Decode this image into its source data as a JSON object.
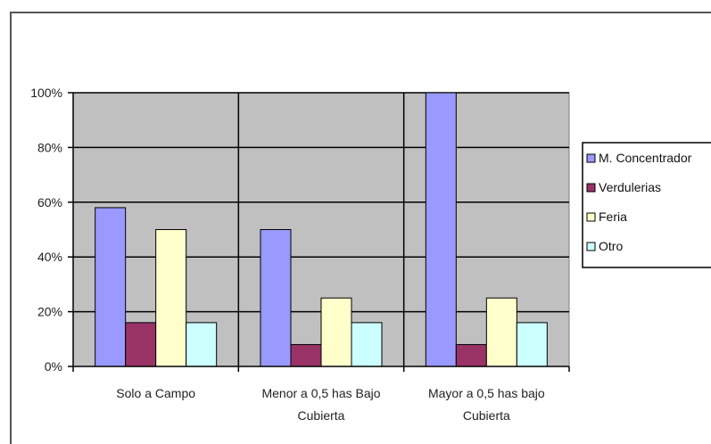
{
  "chart_data": {
    "type": "bar",
    "categories": [
      [
        "Solo a Campo"
      ],
      [
        "Menor a 0,5 has Bajo",
        "Cubierta"
      ],
      [
        "Mayor a 0,5 has bajo",
        "Cubierta"
      ]
    ],
    "series": [
      {
        "name": "M. Concentrador",
        "color": "#9999ff",
        "values": [
          58,
          50,
          100
        ]
      },
      {
        "name": "Verdulerias",
        "color": "#993366",
        "values": [
          16,
          8,
          8
        ]
      },
      {
        "name": "Feria",
        "color": "#ffffcc",
        "values": [
          50,
          25,
          25
        ]
      },
      {
        "name": "Otro",
        "color": "#ccffff",
        "values": [
          16,
          16,
          16
        ]
      }
    ],
    "yticks": [
      "0%",
      "20%",
      "40%",
      "60%",
      "80%",
      "100%"
    ],
    "ylim": [
      0,
      100
    ],
    "plot_background": "#c0c0c0",
    "grid": true,
    "legend_position": "right"
  }
}
